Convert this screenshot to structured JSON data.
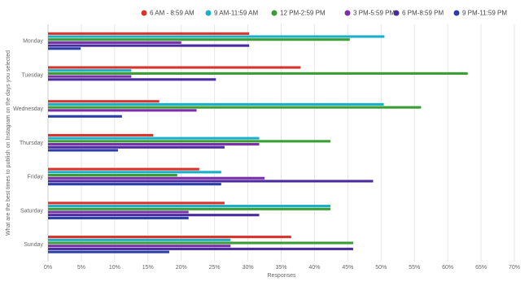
{
  "chart_data": {
    "type": "hbar",
    "y_label": "What are the best times to publish on Instagram on the days you selected",
    "x_label": "Responses",
    "categories": [
      "Monday",
      "Tuesday",
      "Wednesday",
      "Thursday",
      "Friday",
      "Saturday",
      "Sunday"
    ],
    "series": [
      {
        "name": "6 AM - 8:59 AM",
        "color": "#d9342b",
        "values": [
          30.2,
          37.9,
          16.7,
          15.8,
          22.7,
          26.5,
          36.5
        ]
      },
      {
        "name": "9 AM-11:59 AM",
        "color": "#1ab0c9",
        "values": [
          50.5,
          12.5,
          50.4,
          31.7,
          26,
          42.4,
          27.4
        ]
      },
      {
        "name": "12 PM-2:59 PM",
        "color": "#3a9e35",
        "values": [
          45.3,
          63,
          56,
          42.4,
          19.4,
          42.4,
          45.8
        ]
      },
      {
        "name": "3 PM-5:59 PM",
        "color": "#7b2fa8",
        "values": [
          20,
          12.5,
          22.3,
          31.7,
          32.5,
          21.1,
          27.4
        ]
      },
      {
        "name": "6 PM-8:59 PM",
        "color": "#4b2c9e",
        "values": [
          30.2,
          25.2,
          0,
          26.5,
          48.8,
          31.7,
          45.8
        ]
      },
      {
        "name": "9 PM-11:59 PM",
        "color": "#2a3ea8",
        "values": [
          4.9,
          0,
          11.1,
          10.5,
          26,
          21.1,
          18.2
        ]
      }
    ],
    "xlim": [
      0,
      70
    ],
    "xticks": [
      {
        "value": 0,
        "label": "0%"
      },
      {
        "value": 5,
        "label": "5%"
      },
      {
        "value": 10,
        "label": "10%"
      },
      {
        "value": 15,
        "label": "15%"
      },
      {
        "value": 20,
        "label": "20%"
      },
      {
        "value": 25,
        "label": "25%"
      },
      {
        "value": 30,
        "label": "30%"
      },
      {
        "value": 35,
        "label": "35%"
      },
      {
        "value": 40,
        "label": "40%"
      },
      {
        "value": 45,
        "label": "45%"
      },
      {
        "value": 50,
        "label": "50%"
      },
      {
        "value": 55,
        "label": "55%"
      },
      {
        "value": 60,
        "label": "60%"
      },
      {
        "value": 65,
        "label": "65%"
      },
      {
        "value": 70,
        "label": "70%"
      }
    ],
    "grid": true
  }
}
